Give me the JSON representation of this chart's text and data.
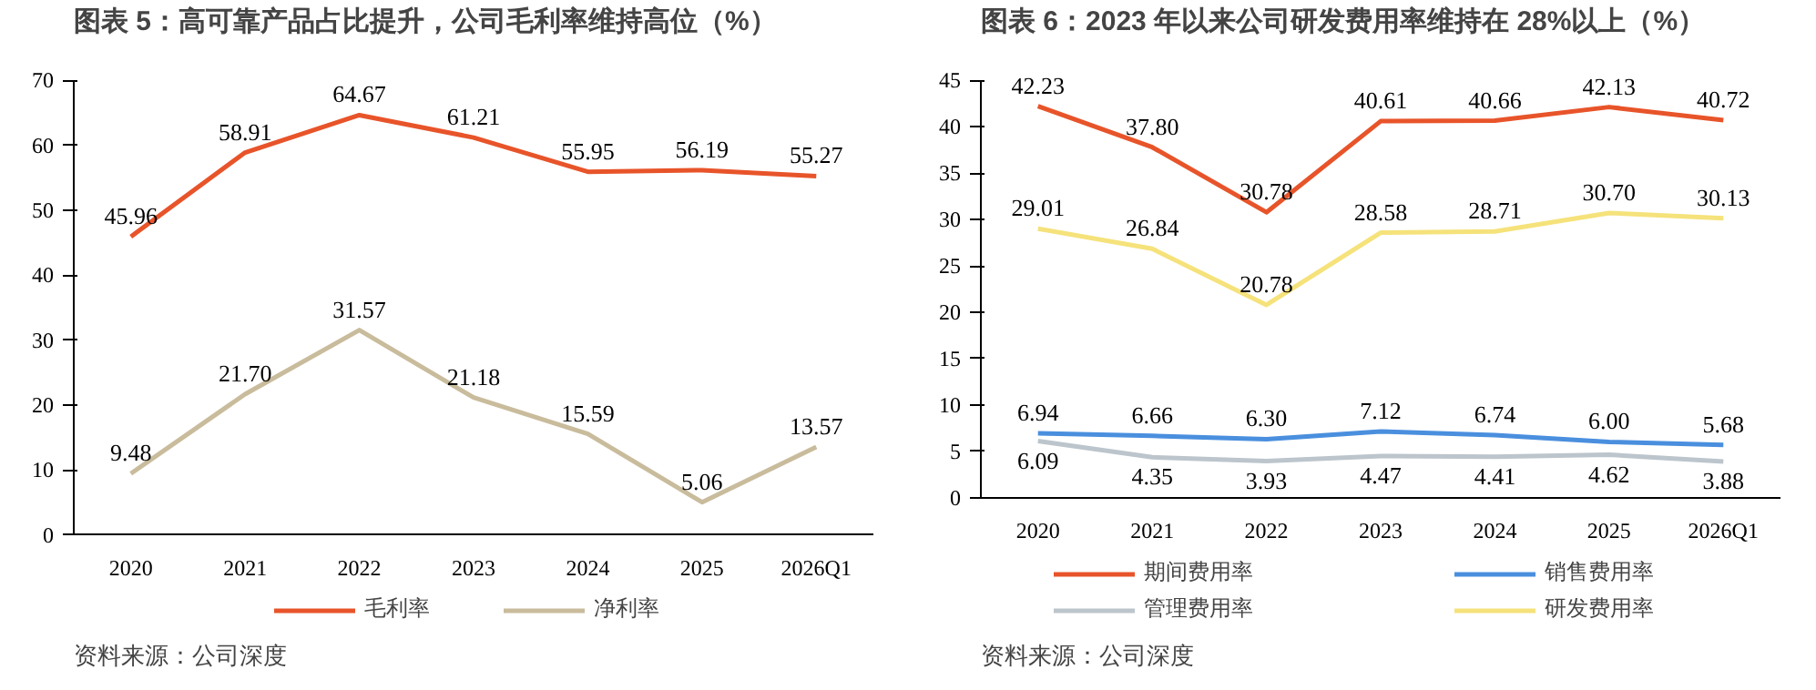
{
  "chart_data": [
    {
      "type": "line",
      "title": "图表 5：高可靠产品占比提升，公司毛利率维持高位（%）",
      "categories": [
        "2020",
        "2021",
        "2022",
        "2023",
        "2024",
        "2025",
        "2026Q1"
      ],
      "series": [
        {
          "name": "毛利率",
          "color": "#e8542a",
          "values": [
            45.96,
            58.91,
            64.67,
            61.21,
            55.95,
            56.19,
            55.27
          ],
          "value_labels": [
            "45.96",
            "58.91",
            "64.67",
            "61.21",
            "55.95",
            "56.19",
            "55.27"
          ]
        },
        {
          "name": "净利率",
          "color": "#c9bc9c",
          "values": [
            9.48,
            21.7,
            31.57,
            21.18,
            15.59,
            5.06,
            13.57
          ],
          "value_labels": [
            "9.48",
            "21.70",
            "31.57",
            "21.18",
            "15.59",
            "5.06",
            "13.57"
          ]
        }
      ],
      "ylim": [
        0,
        70
      ],
      "yticks": [
        0,
        10,
        20,
        30,
        40,
        50,
        60,
        70
      ],
      "legend": "bottom",
      "annotations": [
        "资料来源：公司深度"
      ]
    },
    {
      "type": "line",
      "title": "图表 6：2023 年以来公司研发费用率维持在 28%以上（%）",
      "categories": [
        "2020",
        "2021",
        "2022",
        "2023",
        "2024",
        "2025",
        "2026Q1"
      ],
      "series": [
        {
          "name": "期间费用率",
          "color": "#e8542a",
          "values": [
            42.23,
            37.8,
            30.78,
            40.61,
            40.66,
            42.13,
            40.72
          ],
          "value_labels": [
            "42.23",
            "37.80",
            "30.78",
            "40.61",
            "40.66",
            "42.13",
            "40.72"
          ]
        },
        {
          "name": "销售费用率",
          "color": "#4a8fde",
          "values": [
            6.94,
            6.66,
            6.3,
            7.12,
            6.74,
            6.0,
            5.68
          ],
          "value_labels": [
            "6.94",
            "6.66",
            "6.30",
            "7.12",
            "6.74",
            "6.00",
            "5.68"
          ]
        },
        {
          "name": "管理费用率",
          "color": "#bcc5cc",
          "values": [
            6.09,
            4.35,
            3.93,
            4.47,
            4.41,
            4.62,
            3.88
          ],
          "value_labels": [
            "6.09",
            "4.35",
            "3.93",
            "4.47",
            "4.41",
            "4.62",
            "3.88"
          ]
        },
        {
          "name": "研发费用率",
          "color": "#f5e27a",
          "values": [
            29.01,
            26.84,
            20.78,
            28.58,
            28.71,
            30.7,
            30.13
          ],
          "value_labels": [
            "29.01",
            "26.84",
            "20.78",
            "28.58",
            "28.71",
            "30.70",
            "30.13"
          ]
        }
      ],
      "ylim": [
        0,
        45
      ],
      "yticks": [
        0,
        5,
        10,
        15,
        20,
        25,
        30,
        35,
        40,
        45
      ],
      "legend": "bottom",
      "annotations": [
        "资料来源：公司深度"
      ]
    }
  ]
}
